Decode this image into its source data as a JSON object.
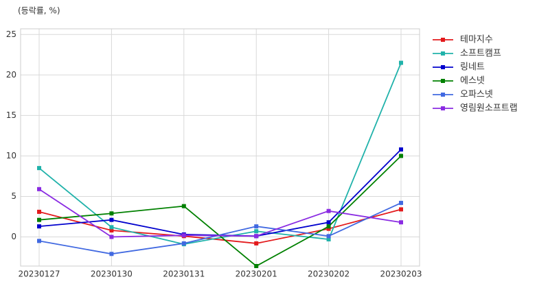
{
  "chart_data": {
    "type": "line",
    "title": "(등락률, %)",
    "categories": [
      "20230127",
      "20230130",
      "20230131",
      "20230201",
      "20230202",
      "20230203"
    ],
    "series": [
      {
        "name": "테마지수",
        "color": "#e31a1c",
        "values": [
          3.1,
          0.8,
          0.1,
          -0.8,
          1.0,
          3.4
        ]
      },
      {
        "name": "소프트캠프",
        "color": "#20b2aa",
        "values": [
          8.5,
          1.2,
          -0.9,
          0.7,
          -0.3,
          21.5
        ]
      },
      {
        "name": "링네트",
        "color": "#0000cd",
        "values": [
          1.3,
          2.1,
          0.3,
          0.1,
          1.8,
          10.8
        ]
      },
      {
        "name": "에스넷",
        "color": "#008000",
        "values": [
          2.1,
          2.9,
          3.8,
          -3.6,
          1.3,
          10.0
        ]
      },
      {
        "name": "오파스넷",
        "color": "#4169e1",
        "values": [
          -0.5,
          -2.1,
          -0.8,
          1.3,
          0.1,
          4.2
        ]
      },
      {
        "name": "영림원소프트랩",
        "color": "#8a2be2",
        "values": [
          5.9,
          0.0,
          0.2,
          0.1,
          3.2,
          1.8
        ]
      }
    ],
    "ylim": [
      -3.6,
      25.7
    ],
    "yticks": [
      0,
      5,
      10,
      15,
      20,
      25
    ],
    "grid": true,
    "legend": "outside-right"
  }
}
